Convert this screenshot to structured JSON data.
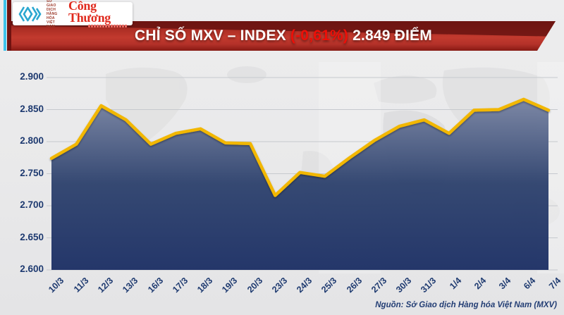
{
  "header": {
    "logo": {
      "mxv_lines": [
        "SỞ GIAO DỊCH",
        "HÀNG HÓA",
        "VIỆT NAM"
      ],
      "paper_name": "Công Thương",
      "mxv_mark_color": "#2aa7d0"
    },
    "banner": {
      "title_prefix": "CHỈ SỐ MXV – INDEX ",
      "change": "(-0,61%)",
      "title_suffix": " 2.849 ĐIỂM",
      "change_color": "#ee0f08",
      "banner_color": "#c23a2e"
    }
  },
  "chart_data": {
    "type": "area",
    "title": "CHỈ SỐ MXV – INDEX (-0,61%) 2.849 ĐIỂM",
    "categories": [
      "10/3",
      "11/3",
      "12/3",
      "13/3",
      "16/3",
      "17/3",
      "18/3",
      "19/3",
      "20/3",
      "23/3",
      "24/3",
      "25/3",
      "26/3",
      "27/3",
      "30/3",
      "31/3",
      "1/4",
      "2/4",
      "3/4",
      "6/4",
      "7/4"
    ],
    "values": [
      2.774,
      2.796,
      2.856,
      2.834,
      2.796,
      2.813,
      2.82,
      2.798,
      2.797,
      2.716,
      2.752,
      2.746,
      2.775,
      2.802,
      2.824,
      2.834,
      2.813,
      2.849,
      2.85,
      2.866,
      2.849
    ],
    "xlabel": "",
    "ylabel": "",
    "ylim": [
      2.6,
      2.9
    ],
    "ytick_step": 0.05,
    "ytick_labels": [
      "2.900",
      "2.850",
      "2.800",
      "2.750",
      "2.700",
      "2.650",
      "2.600"
    ],
    "grid": true,
    "legend": "none",
    "line_color": "#F2B705",
    "fill_top": "#7d88a6",
    "fill_mid": "#30446f",
    "fill_bottom": "#1e3166",
    "grid_color": "#c6c9ce",
    "label_color": "#1e3a70"
  },
  "footer": {
    "source": "Nguồn: Sở Giao dịch Hàng hóa Việt Nam (MXV)"
  }
}
